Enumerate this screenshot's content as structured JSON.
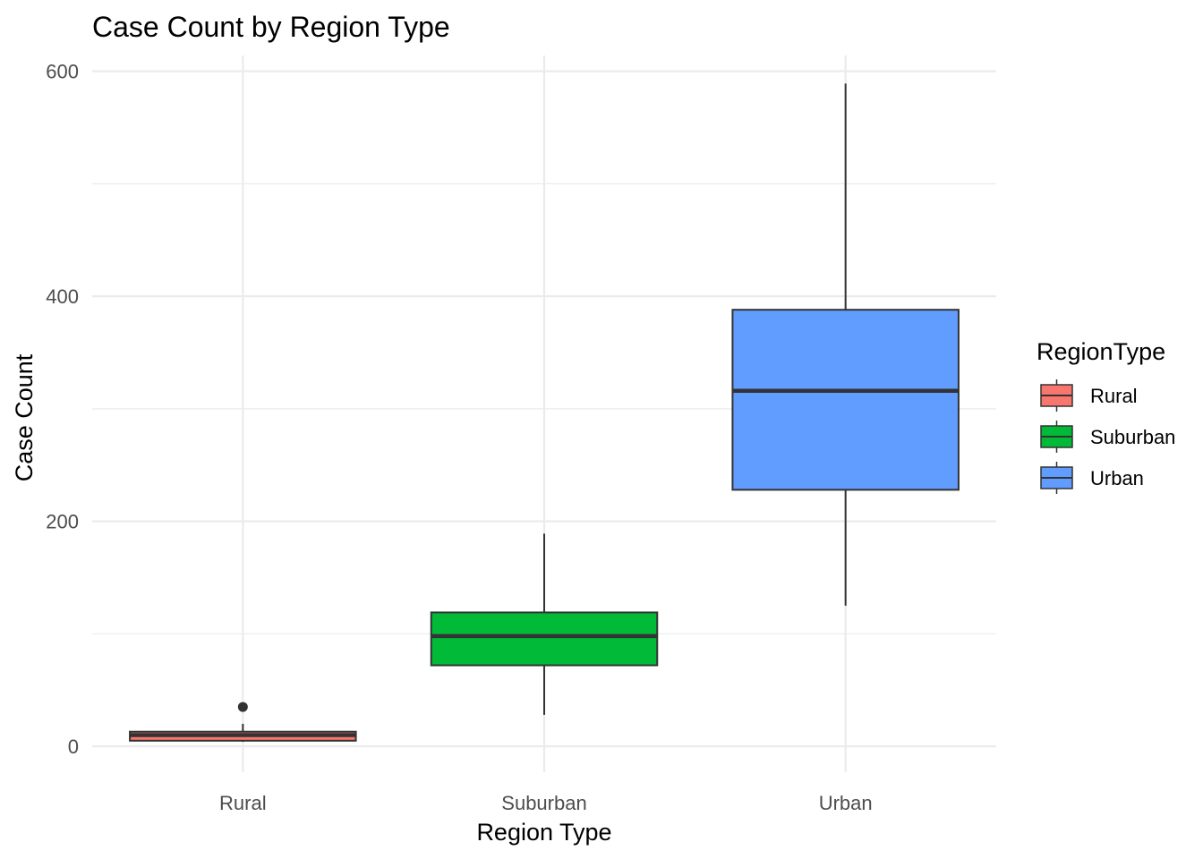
{
  "chart_data": {
    "type": "box",
    "title": "Case Count by Region Type",
    "xlabel": "Region Type",
    "ylabel": "Case Count",
    "ylim": [
      -23,
      614
    ],
    "y_ticks_major": [
      0,
      200,
      400,
      600
    ],
    "y_ticks_minor": [
      100,
      300,
      500
    ],
    "grid": true,
    "legend": {
      "title": "RegionType",
      "placement": "right"
    },
    "categories": [
      "Rural",
      "Suburban",
      "Urban"
    ],
    "series": [
      {
        "name": "Rural",
        "color": "#F8766D",
        "min": 4,
        "q1": 5,
        "median": 10,
        "q3": 13,
        "max": 20,
        "outliers": [
          35
        ]
      },
      {
        "name": "Suburban",
        "color": "#00BA38",
        "min": 28,
        "q1": 72,
        "median": 98,
        "q3": 119,
        "max": 189,
        "outliers": []
      },
      {
        "name": "Urban",
        "color": "#619CFF",
        "min": 125,
        "q1": 228,
        "median": 316,
        "q3": 388,
        "max": 589,
        "outliers": []
      }
    ]
  }
}
